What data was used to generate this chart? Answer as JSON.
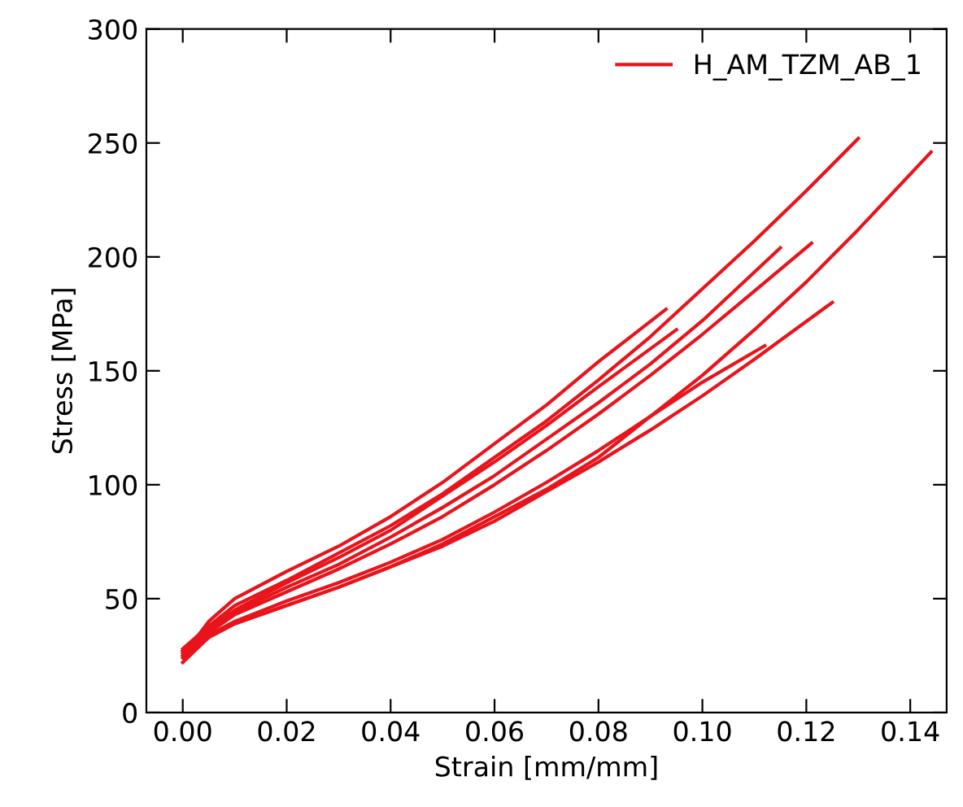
{
  "chart_data": {
    "type": "line",
    "xlabel": "Strain [mm/mm]",
    "ylabel": "Stress [MPa]",
    "xlim": [
      -0.007,
      0.147
    ],
    "ylim": [
      0,
      300
    ],
    "xticks": [
      {
        "value": 0,
        "label": "0.00"
      },
      {
        "value": 0.02,
        "label": "0.02"
      },
      {
        "value": 0.04,
        "label": "0.04"
      },
      {
        "value": 0.06,
        "label": "0.06"
      },
      {
        "value": 0.08,
        "label": "0.08"
      },
      {
        "value": 0.1,
        "label": "0.10"
      },
      {
        "value": 0.12,
        "label": "0.12"
      },
      {
        "value": 0.14,
        "label": "0.14"
      }
    ],
    "yticks": [
      0,
      50,
      100,
      150,
      200,
      250,
      300
    ],
    "grid": false,
    "legend": "top right",
    "marker": "none",
    "line_style": "solid",
    "series": [
      {
        "name": "H_AM_TZM_AB_1",
        "color": "#e8141c",
        "x": [
          0,
          0.005,
          0.01,
          0.02,
          0.03,
          0.04,
          0.05,
          0.06,
          0.07,
          0.08,
          0.093
        ],
        "values": [
          25,
          40,
          50,
          62,
          73,
          86,
          101,
          118,
          135,
          154,
          177
        ]
      },
      {
        "color": "#e8141c",
        "x": [
          0,
          0.005,
          0.01,
          0.02,
          0.03,
          0.04,
          0.05,
          0.06,
          0.07,
          0.08,
          0.09,
          0.1,
          0.11,
          0.12,
          0.13
        ],
        "values": [
          28,
          38,
          47,
          58,
          70,
          82,
          96,
          112,
          128,
          146,
          165,
          186,
          207,
          229,
          252
        ]
      },
      {
        "color": "#e8141c",
        "x": [
          0,
          0.005,
          0.01,
          0.02,
          0.03,
          0.04,
          0.05,
          0.06,
          0.07,
          0.08,
          0.095
        ],
        "values": [
          27,
          37,
          45,
          57,
          68,
          80,
          95,
          110,
          126,
          143,
          168
        ]
      },
      {
        "color": "#e8141c",
        "x": [
          0,
          0.005,
          0.01,
          0.02,
          0.03,
          0.04,
          0.05,
          0.06,
          0.07,
          0.08,
          0.09,
          0.1,
          0.115
        ],
        "values": [
          27,
          36,
          44,
          55,
          65,
          77,
          90,
          104,
          120,
          136,
          153,
          172,
          204
        ]
      },
      {
        "color": "#e8141c",
        "x": [
          0,
          0.005,
          0.01,
          0.02,
          0.03,
          0.04,
          0.05,
          0.06,
          0.07,
          0.08,
          0.09,
          0.1,
          0.11,
          0.121
        ],
        "values": [
          26,
          35,
          43,
          53,
          63,
          74,
          86,
          100,
          115,
          131,
          148,
          166,
          185,
          206
        ]
      },
      {
        "color": "#e8141c",
        "x": [
          0,
          0.005,
          0.01,
          0.02,
          0.03,
          0.04,
          0.05,
          0.06,
          0.07,
          0.08,
          0.09,
          0.1,
          0.112
        ],
        "values": [
          25,
          34,
          40,
          49,
          57,
          66,
          76,
          88,
          101,
          115,
          130,
          145,
          161
        ]
      },
      {
        "color": "#e8141c",
        "x": [
          0,
          0.005,
          0.01,
          0.02,
          0.03,
          0.04,
          0.05,
          0.06,
          0.07,
          0.08,
          0.09,
          0.1,
          0.11,
          0.125
        ],
        "values": [
          24,
          33,
          39,
          47,
          55,
          64,
          73,
          84,
          97,
          110,
          124,
          139,
          155,
          180
        ]
      },
      {
        "color": "#e8141c",
        "x": [
          0,
          0.005,
          0.01,
          0.02,
          0.03,
          0.04,
          0.05,
          0.06,
          0.07,
          0.08,
          0.09,
          0.1,
          0.11,
          0.12,
          0.13,
          0.144
        ],
        "values": [
          22,
          33,
          39,
          47,
          55,
          64,
          74,
          86,
          98,
          112,
          130,
          148,
          168,
          189,
          212,
          246
        ]
      }
    ]
  }
}
